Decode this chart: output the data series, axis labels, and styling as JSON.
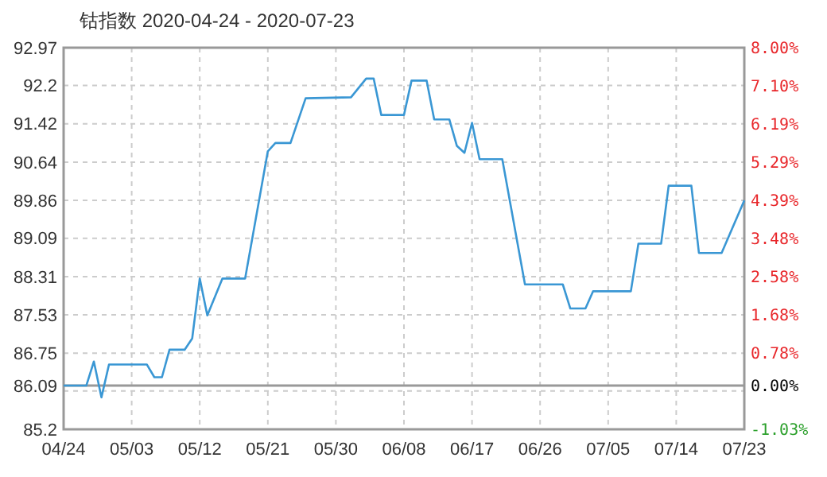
{
  "chart_data": {
    "type": "line",
    "title": "钴指数 2020-04-24 - 2020-07-23",
    "x": [
      "2020-04-24",
      "2020-04-27",
      "2020-04-28",
      "2020-04-29",
      "2020-04-30",
      "2020-05-05",
      "2020-05-06",
      "2020-05-07",
      "2020-05-08",
      "2020-05-10",
      "2020-05-11",
      "2020-05-12",
      "2020-05-13",
      "2020-05-15",
      "2020-05-18",
      "2020-05-21",
      "2020-05-22",
      "2020-05-24",
      "2020-05-26",
      "2020-06-01",
      "2020-06-03",
      "2020-06-04",
      "2020-06-05",
      "2020-06-08",
      "2020-06-09",
      "2020-06-11",
      "2020-06-12",
      "2020-06-14",
      "2020-06-15",
      "2020-06-16",
      "2020-06-17",
      "2020-06-18",
      "2020-06-21",
      "2020-06-24",
      "2020-06-29",
      "2020-06-30",
      "2020-07-02",
      "2020-07-03",
      "2020-07-08",
      "2020-07-09",
      "2020-07-12",
      "2020-07-13",
      "2020-07-16",
      "2020-07-17",
      "2020-07-20",
      "2020-07-23"
    ],
    "series": [
      {
        "color": "#3a97d4",
        "values": [
          86.09,
          86.09,
          86.58,
          85.85,
          86.52,
          86.52,
          86.26,
          86.26,
          86.82,
          86.82,
          87.05,
          88.27,
          87.52,
          88.27,
          88.27,
          90.86,
          91.03,
          91.03,
          91.94,
          91.96,
          92.34,
          92.34,
          91.6,
          91.6,
          92.3,
          92.3,
          91.51,
          91.51,
          90.97,
          90.83,
          91.44,
          90.7,
          90.7,
          88.15,
          88.15,
          87.66,
          87.66,
          88.01,
          88.01,
          88.98,
          88.98,
          90.16,
          90.16,
          88.79,
          88.79,
          89.86
        ]
      }
    ],
    "xlim": [
      "2020-04-24",
      "2020-07-23"
    ],
    "xticks": [
      {
        "value": "2020-04-24",
        "label": "04/24"
      },
      {
        "value": "2020-05-03",
        "label": "05/03"
      },
      {
        "value": "2020-05-12",
        "label": "05/12"
      },
      {
        "value": "2020-05-21",
        "label": "05/21"
      },
      {
        "value": "2020-05-30",
        "label": "05/30"
      },
      {
        "value": "2020-06-08",
        "label": "06/08"
      },
      {
        "value": "2020-06-17",
        "label": "06/17"
      },
      {
        "value": "2020-06-26",
        "label": "06/26"
      },
      {
        "value": "2020-07-05",
        "label": "07/05"
      },
      {
        "value": "2020-07-14",
        "label": "07/14"
      },
      {
        "value": "2020-07-23",
        "label": "07/23"
      }
    ],
    "ylim": [
      85.2,
      92.97
    ],
    "yticks": [
      85.2,
      {
        "value": 85.98,
        "label": null
      },
      86.09,
      86.75,
      87.53,
      88.31,
      89.09,
      89.86,
      90.64,
      91.42,
      92.2,
      92.97
    ],
    "y2lim": [
      -1.03,
      8.0
    ],
    "y2ticks": [
      {
        "value": -1.03,
        "label": "-1.03%"
      },
      {
        "value": 0,
        "label": "0.00%"
      },
      {
        "value": 0.78,
        "label": "0.78%"
      },
      {
        "value": 1.68,
        "label": "1.68%"
      },
      {
        "value": 2.58,
        "label": "2.58%"
      },
      {
        "value": 3.48,
        "label": "3.48%"
      },
      {
        "value": 4.39,
        "label": "4.39%"
      },
      {
        "value": 5.29,
        "label": "5.29%"
      },
      {
        "value": 6.19,
        "label": "6.19%"
      },
      {
        "value": 7.1,
        "label": "7.10%"
      },
      {
        "value": 8.0,
        "label": "8.00%"
      }
    ],
    "ref_lines": [
      {
        "axis": "y",
        "value": 86.09,
        "color": "#999999"
      }
    ],
    "grid": true
  }
}
